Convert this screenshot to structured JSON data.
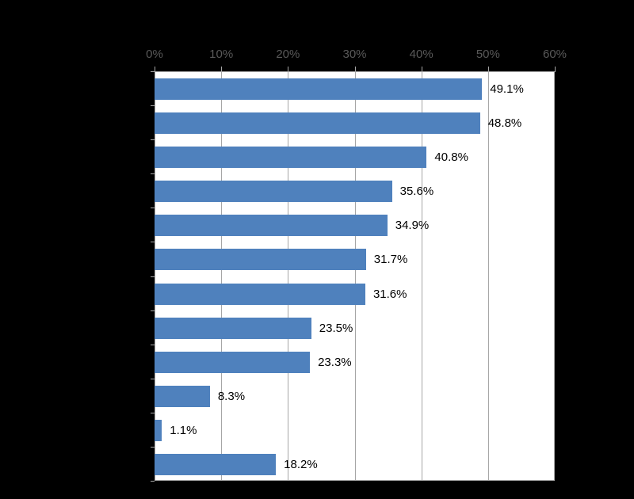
{
  "chart_data": {
    "type": "bar",
    "orientation": "horizontal",
    "values": [
      49.1,
      48.8,
      40.8,
      35.6,
      34.9,
      31.7,
      31.6,
      23.5,
      23.3,
      8.3,
      1.1,
      18.2
    ],
    "value_labels": [
      "49.1%",
      "48.8%",
      "40.8%",
      "35.6%",
      "34.9%",
      "31.7%",
      "31.6%",
      "23.5%",
      "23.3%",
      "8.3%",
      "1.1%",
      "18.2%"
    ],
    "x_tick_labels": [
      "0%",
      "10%",
      "20%",
      "30%",
      "40%",
      "50%",
      "60%"
    ],
    "xlim": [
      0,
      60
    ],
    "grid": true,
    "legend": "none",
    "data_labels": "outside-end",
    "colors": {
      "bar": "#4f81bd",
      "plot_background": "#ffffff",
      "page_background": "#000000",
      "gridline": "#a6a6a6",
      "axis_tick": "#a6a6a6",
      "x_tick_label": "#595959",
      "value_label": "#000000"
    }
  }
}
